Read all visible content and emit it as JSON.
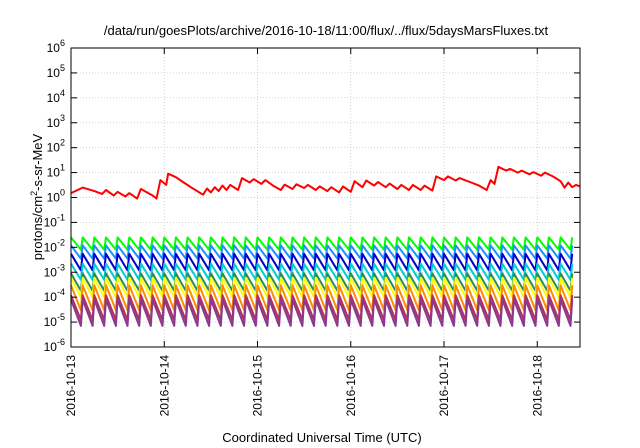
{
  "chart_data": {
    "type": "line",
    "title": "/data/run/goesPlots/archive/2016-10-18/11:00/flux/../flux/5daysMarsFluxes.txt",
    "xlabel": "Coordinated Universal Time (UTC)",
    "ylabel": "protons/cm²-s-sr-MeV",
    "yscale": "log",
    "ylim": [
      1e-06,
      1000000.0
    ],
    "y_ticks": [
      {
        "value": 1e-06,
        "base": "10",
        "exp": "-6"
      },
      {
        "value": 1e-05,
        "base": "10",
        "exp": "-5"
      },
      {
        "value": 0.0001,
        "base": "10",
        "exp": "-4"
      },
      {
        "value": 0.001,
        "base": "10",
        "exp": "-3"
      },
      {
        "value": 0.01,
        "base": "10",
        "exp": "-2"
      },
      {
        "value": 0.1,
        "base": "10",
        "exp": "-1"
      },
      {
        "value": 1,
        "base": "10",
        "exp": "0"
      },
      {
        "value": 10,
        "base": "10",
        "exp": "1"
      },
      {
        "value": 100,
        "base": "10",
        "exp": "2"
      },
      {
        "value": 1000,
        "base": "10",
        "exp": "3"
      },
      {
        "value": 10000,
        "base": "10",
        "exp": "4"
      },
      {
        "value": 100000,
        "base": "10",
        "exp": "5"
      },
      {
        "value": 1000000,
        "base": "10",
        "exp": "6"
      }
    ],
    "x_range_days": [
      "2016-10-13",
      "2016-10-18T11:00"
    ],
    "x_ticks": [
      "2016-10-13",
      "2016-10-14",
      "2016-10-15",
      "2016-10-16",
      "2016-10-17",
      "2016-10-18"
    ],
    "grid": true,
    "legend": "none",
    "sawtooth": {
      "period_hours": 3,
      "teeth_per_series": 44
    },
    "series": [
      {
        "color": "#ff0000",
        "points": [
          [
            "2016-10-13T00:00",
            1.5
          ],
          [
            "2016-10-13T03:00",
            2.5
          ],
          [
            "2016-10-13T06:00",
            1.8
          ],
          [
            "2016-10-13T08:00",
            1.4
          ],
          [
            "2016-10-13T09:00",
            2.0
          ],
          [
            "2016-10-13T11:00",
            1.2
          ],
          [
            "2016-10-13T12:00",
            1.7
          ],
          [
            "2016-10-13T14:00",
            1.1
          ],
          [
            "2016-10-13T15:00",
            1.5
          ],
          [
            "2016-10-13T17:00",
            0.9
          ],
          [
            "2016-10-13T18:00",
            2.2
          ],
          [
            "2016-10-13T21:00",
            1.2
          ],
          [
            "2016-10-13T22:00",
            0.9
          ],
          [
            "2016-10-13T23:00",
            5.0
          ],
          [
            "2016-10-14T00:30",
            3.2
          ],
          [
            "2016-10-14T01:00",
            9.0
          ],
          [
            "2016-10-14T03:00",
            6.5
          ],
          [
            "2016-10-14T05:00",
            4.0
          ],
          [
            "2016-10-14T07:00",
            2.5
          ],
          [
            "2016-10-14T09:00",
            1.6
          ],
          [
            "2016-10-14T10:00",
            1.3
          ],
          [
            "2016-10-14T11:00",
            2.3
          ],
          [
            "2016-10-14T12:00",
            1.6
          ],
          [
            "2016-10-14T13:00",
            2.6
          ],
          [
            "2016-10-14T14:00",
            1.8
          ],
          [
            "2016-10-14T15:00",
            3.0
          ],
          [
            "2016-10-14T16:00",
            2.0
          ],
          [
            "2016-10-14T17:00",
            3.2
          ],
          [
            "2016-10-14T19:00",
            2.0
          ],
          [
            "2016-10-14T20:00",
            6.0
          ],
          [
            "2016-10-14T22:00",
            4.0
          ],
          [
            "2016-10-14T23:00",
            5.5
          ],
          [
            "2016-10-15T01:00",
            3.5
          ],
          [
            "2016-10-15T02:00",
            5.0
          ],
          [
            "2016-10-15T04:00",
            3.0
          ],
          [
            "2016-10-15T06:00",
            2.0
          ],
          [
            "2016-10-15T07:00",
            3.3
          ],
          [
            "2016-10-15T09:00",
            2.2
          ],
          [
            "2016-10-15T10:00",
            3.4
          ],
          [
            "2016-10-15T12:00",
            2.4
          ],
          [
            "2016-10-15T13:00",
            3.2
          ],
          [
            "2016-10-15T15:00",
            2.0
          ],
          [
            "2016-10-15T16:00",
            2.8
          ],
          [
            "2016-10-15T18:00",
            1.8
          ],
          [
            "2016-10-15T19:00",
            2.6
          ],
          [
            "2016-10-15T21:00",
            1.6
          ],
          [
            "2016-10-15T22:00",
            2.8
          ],
          [
            "2016-10-16T00:00",
            1.7
          ],
          [
            "2016-10-16T01:00",
            4.5
          ],
          [
            "2016-10-16T03:00",
            2.6
          ],
          [
            "2016-10-16T04:00",
            4.8
          ],
          [
            "2016-10-16T06:00",
            3.0
          ],
          [
            "2016-10-16T07:00",
            4.2
          ],
          [
            "2016-10-16T09:00",
            2.6
          ],
          [
            "2016-10-16T10:00",
            3.6
          ],
          [
            "2016-10-16T12:00",
            2.2
          ],
          [
            "2016-10-16T13:00",
            3.2
          ],
          [
            "2016-10-16T15:00",
            2.0
          ],
          [
            "2016-10-16T16:00",
            3.2
          ],
          [
            "2016-10-16T18:00",
            2.0
          ],
          [
            "2016-10-16T19:00",
            3.0
          ],
          [
            "2016-10-16T21:00",
            1.9
          ],
          [
            "2016-10-16T22:00",
            7.0
          ],
          [
            "2016-10-17T00:00",
            5.0
          ],
          [
            "2016-10-17T01:00",
            7.0
          ],
          [
            "2016-10-17T03:00",
            4.8
          ],
          [
            "2016-10-17T04:00",
            6.0
          ],
          [
            "2016-10-17T07:00",
            4.0
          ],
          [
            "2016-10-17T09:00",
            3.0
          ],
          [
            "2016-10-17T11:00",
            2.0
          ],
          [
            "2016-10-17T12:00",
            5.0
          ],
          [
            "2016-10-17T13:00",
            3.5
          ],
          [
            "2016-10-17T14:00",
            17.0
          ],
          [
            "2016-10-17T16:00",
            12.0
          ],
          [
            "2016-10-17T17:00",
            14.0
          ],
          [
            "2016-10-17T19:00",
            10.0
          ],
          [
            "2016-10-17T20:00",
            12.0
          ],
          [
            "2016-10-17T22:00",
            8.5
          ],
          [
            "2016-10-17T23:00",
            10.5
          ],
          [
            "2016-10-18T01:00",
            7.5
          ],
          [
            "2016-10-18T02:00",
            10.0
          ],
          [
            "2016-10-18T04:00",
            7.0
          ],
          [
            "2016-10-18T06:00",
            4.5
          ],
          [
            "2016-10-18T07:00",
            2.5
          ],
          [
            "2016-10-18T08:00",
            4.0
          ],
          [
            "2016-10-18T09:00",
            2.6
          ],
          [
            "2016-10-18T10:00",
            3.2
          ],
          [
            "2016-10-18T11:00",
            2.8
          ]
        ]
      },
      {
        "color": "#00ff00",
        "peak": 0.025,
        "trough": 0.008
      },
      {
        "color": "#1e90ff",
        "peak": 0.012,
        "trough": 0.0035
      },
      {
        "color": "#0000cd",
        "peak": 0.0055,
        "trough": 0.0012
      },
      {
        "color": "#00ced1",
        "peak": 0.0022,
        "trough": 0.0005
      },
      {
        "color": "#2e8b57",
        "peak": 0.0009,
        "trough": 0.00018
      },
      {
        "color": "#ffff00",
        "peak": 0.0006,
        "trough": 0.0001
      },
      {
        "color": "#ff8c00",
        "peak": 0.0003,
        "trough": 3e-05
      },
      {
        "color": "#b03060",
        "peak": 0.00012,
        "trough": 1.2e-05
      },
      {
        "color": "#8b3a8b",
        "peak": 8e-05,
        "trough": 7e-06
      }
    ]
  }
}
